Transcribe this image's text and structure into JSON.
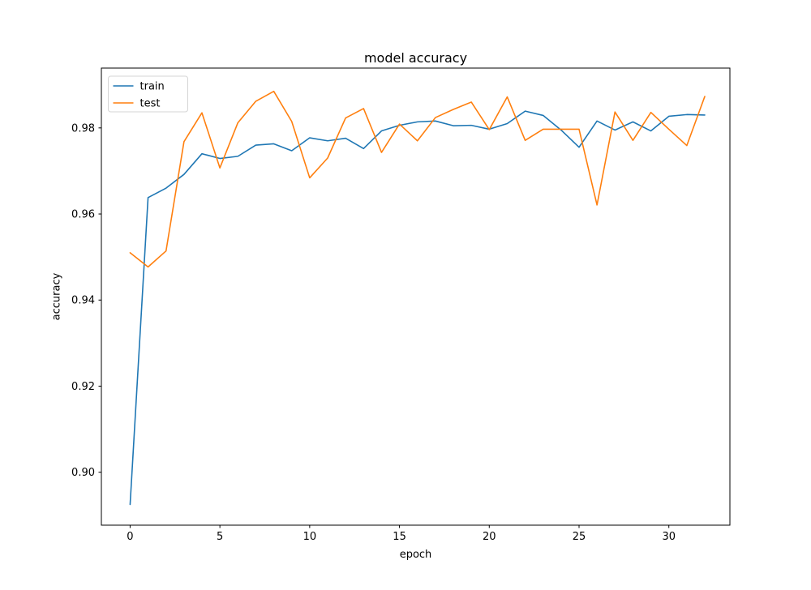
{
  "figure": {
    "title": "model accuracy",
    "xlabel": "epoch",
    "ylabel": "accuracy"
  },
  "colors": {
    "train": "#1f77b4",
    "test": "#ff7f0e",
    "spine": "#000000",
    "tick_label": "#000000",
    "legend_border": "#d5d5d5",
    "background": "#ffffff"
  },
  "legend": {
    "position": "upper left",
    "entries": [
      "train",
      "test"
    ]
  },
  "chart_data": {
    "type": "line",
    "title": "model accuracy",
    "xlabel": "epoch",
    "ylabel": "accuracy",
    "grid": false,
    "legend_position": "upper left",
    "x": [
      0,
      1,
      2,
      3,
      4,
      5,
      6,
      7,
      8,
      9,
      10,
      11,
      12,
      13,
      14,
      15,
      16,
      17,
      18,
      19,
      20,
      21,
      22,
      23,
      24,
      25,
      26,
      27,
      28,
      29,
      30,
      31,
      32
    ],
    "series": [
      {
        "name": "train",
        "color": "#1f77b4",
        "values": [
          0.8925,
          0.9638,
          0.966,
          0.9692,
          0.974,
          0.9729,
          0.9734,
          0.976,
          0.9763,
          0.9747,
          0.9777,
          0.977,
          0.9776,
          0.9752,
          0.9793,
          0.9806,
          0.9814,
          0.9816,
          0.9805,
          0.9806,
          0.9797,
          0.981,
          0.9839,
          0.9829,
          0.9795,
          0.9755,
          0.9816,
          0.9795,
          0.9814,
          0.9793,
          0.9827,
          0.9831,
          0.983
        ]
      },
      {
        "name": "test",
        "color": "#ff7f0e",
        "values": [
          0.951,
          0.9477,
          0.9514,
          0.9768,
          0.9835,
          0.9707,
          0.9812,
          0.9862,
          0.9885,
          0.9815,
          0.9684,
          0.973,
          0.9823,
          0.9845,
          0.9743,
          0.9809,
          0.977,
          0.9824,
          0.9843,
          0.986,
          0.9796,
          0.9872,
          0.9771,
          0.9797,
          0.9797,
          0.9797,
          0.9621,
          0.9837,
          0.9771,
          0.9836,
          0.9797,
          0.9759,
          0.9873
        ]
      }
    ],
    "xticks": [
      0,
      5,
      10,
      15,
      20,
      25,
      30
    ],
    "xtick_labels": [
      "0",
      "5",
      "10",
      "15",
      "20",
      "25",
      "30"
    ],
    "yticks": [
      0.9,
      0.92,
      0.94,
      0.96,
      0.98
    ],
    "ytick_labels": [
      "0.90",
      "0.92",
      "0.94",
      "0.96",
      "0.98"
    ],
    "xlim": [
      -1.6,
      33.4
    ],
    "ylim": [
      0.8877,
      0.9939
    ]
  }
}
